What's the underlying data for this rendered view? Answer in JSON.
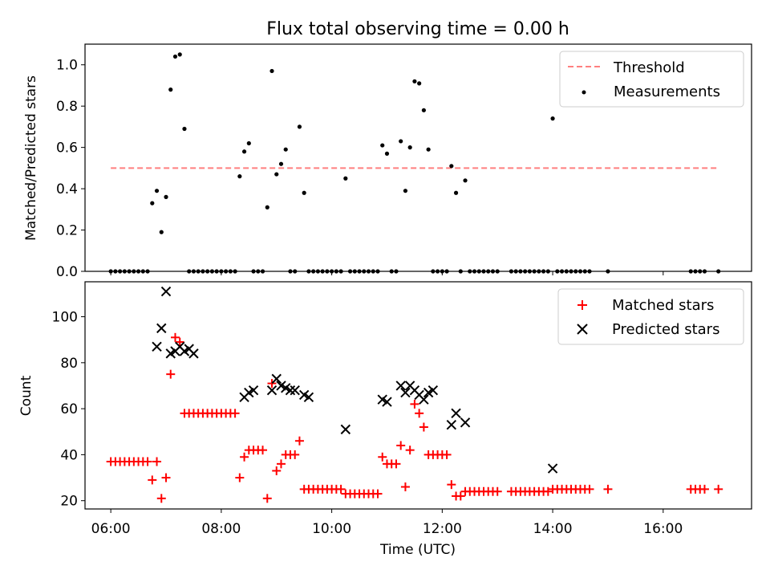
{
  "title": "Flux total observing time = 0.00 h",
  "colors": {
    "threshold": "#ff7f7f",
    "measurements": "#000000",
    "matched": "#ff0000",
    "predicted": "#000000"
  },
  "chart_data": [
    {
      "type": "scatter",
      "panel": "top",
      "title": "Flux total observing time = 0.00 h",
      "xlabel": "",
      "ylabel": "Matched/Predicted stars",
      "xlim": [
        "05:32",
        "17:36"
      ],
      "ylim": [
        0,
        1.1
      ],
      "yticks": [
        "0.0",
        "0.2",
        "0.4",
        "0.6",
        "0.8",
        "1.0"
      ],
      "legend": {
        "placement": "top-right",
        "entries": [
          "Threshold",
          "Measurements"
        ]
      },
      "threshold": {
        "name": "Threshold",
        "y": 0.5,
        "x": [
          "06:00",
          "17:00"
        ]
      },
      "series": [
        {
          "name": "Measurements",
          "x": [
            "06:00",
            "06:05",
            "06:10",
            "06:15",
            "06:20",
            "06:25",
            "06:30",
            "06:35",
            "06:40",
            "06:45",
            "06:50",
            "06:55",
            "07:00",
            "07:05",
            "07:10",
            "07:15",
            "07:20",
            "07:25",
            "07:30",
            "07:35",
            "07:40",
            "07:45",
            "07:50",
            "07:55",
            "08:00",
            "08:05",
            "08:10",
            "08:15",
            "08:20",
            "08:25",
            "08:30",
            "08:35",
            "08:40",
            "08:45",
            "08:50",
            "08:55",
            "09:00",
            "09:05",
            "09:10",
            "09:15",
            "09:20",
            "09:25",
            "09:30",
            "09:35",
            "09:40",
            "09:45",
            "09:50",
            "09:55",
            "10:00",
            "10:05",
            "10:10",
            "10:15",
            "10:20",
            "10:25",
            "10:30",
            "10:35",
            "10:40",
            "10:45",
            "10:50",
            "10:55",
            "11:00",
            "11:05",
            "11:10",
            "11:15",
            "11:20",
            "11:25",
            "11:30",
            "11:35",
            "11:40",
            "11:45",
            "11:50",
            "11:55",
            "12:00",
            "12:05",
            "12:10",
            "12:15",
            "12:20",
            "12:25",
            "12:30",
            "12:35",
            "12:40",
            "12:45",
            "12:50",
            "12:55",
            "13:00",
            "13:15",
            "13:20",
            "13:25",
            "13:30",
            "13:35",
            "13:40",
            "13:45",
            "13:50",
            "13:55",
            "14:00",
            "14:05",
            "14:10",
            "14:15",
            "14:20",
            "14:25",
            "14:30",
            "14:35",
            "14:40",
            "15:00",
            "16:30",
            "16:35",
            "16:40",
            "16:45",
            "17:00"
          ],
          "y": [
            0,
            0,
            0,
            0,
            0,
            0,
            0,
            0,
            0,
            0.33,
            0.39,
            0.19,
            0.36,
            0.88,
            1.04,
            1.05,
            0.69,
            0,
            0,
            0,
            0,
            0,
            0,
            0,
            0,
            0,
            0,
            0,
            0.46,
            0.58,
            0.62,
            0,
            0,
            0,
            0.31,
            0.97,
            0.47,
            0.52,
            0.59,
            0,
            0,
            0.7,
            0.38,
            0,
            0,
            0,
            0,
            0,
            0,
            0,
            0,
            0.45,
            0,
            0,
            0,
            0,
            0,
            0,
            0,
            0.61,
            0.57,
            0,
            0,
            0.63,
            0.39,
            0.6,
            0.92,
            0.91,
            0.78,
            0.59,
            0,
            0,
            0,
            0,
            0.51,
            0.38,
            0,
            0.44,
            0,
            0,
            0,
            0,
            0,
            0,
            0,
            0,
            0,
            0,
            0,
            0,
            0,
            0,
            0,
            0,
            0.74,
            0,
            0,
            0,
            0,
            0,
            0,
            0,
            0,
            0,
            0,
            0,
            0,
            0,
            0
          ]
        }
      ]
    },
    {
      "type": "scatter",
      "panel": "bottom",
      "title": "",
      "xlabel": "Time (UTC)",
      "ylabel": "Count",
      "xlim": [
        "05:32",
        "17:36"
      ],
      "ylim": [
        16.4,
        115.2
      ],
      "xticks": [
        "06:00",
        "08:00",
        "10:00",
        "12:00",
        "14:00",
        "16:00"
      ],
      "yticks": [
        "20",
        "40",
        "60",
        "80",
        "100"
      ],
      "legend": {
        "placement": "top-right",
        "entries": [
          "Matched stars",
          "Predicted stars"
        ]
      },
      "series": [
        {
          "name": "Matched stars",
          "marker": "plus",
          "x": [
            "06:00",
            "06:05",
            "06:10",
            "06:15",
            "06:20",
            "06:25",
            "06:30",
            "06:35",
            "06:40",
            "06:45",
            "06:50",
            "06:55",
            "07:00",
            "07:05",
            "07:10",
            "07:15",
            "07:20",
            "07:25",
            "07:30",
            "07:35",
            "07:40",
            "07:45",
            "07:50",
            "07:55",
            "08:00",
            "08:05",
            "08:10",
            "08:15",
            "08:20",
            "08:25",
            "08:30",
            "08:35",
            "08:40",
            "08:45",
            "08:50",
            "08:55",
            "09:00",
            "09:05",
            "09:10",
            "09:15",
            "09:20",
            "09:25",
            "09:30",
            "09:35",
            "09:40",
            "09:45",
            "09:50",
            "09:55",
            "10:00",
            "10:05",
            "10:10",
            "10:15",
            "10:20",
            "10:25",
            "10:30",
            "10:35",
            "10:40",
            "10:45",
            "10:50",
            "10:55",
            "11:00",
            "11:05",
            "11:10",
            "11:15",
            "11:20",
            "11:25",
            "11:30",
            "11:35",
            "11:40",
            "11:45",
            "11:50",
            "11:55",
            "12:00",
            "12:05",
            "12:10",
            "12:15",
            "12:20",
            "12:25",
            "12:30",
            "12:35",
            "12:40",
            "12:45",
            "12:50",
            "12:55",
            "13:00",
            "13:15",
            "13:20",
            "13:25",
            "13:30",
            "13:35",
            "13:40",
            "13:45",
            "13:50",
            "13:55",
            "14:00",
            "14:05",
            "14:10",
            "14:15",
            "14:20",
            "14:25",
            "14:30",
            "14:35",
            "14:40",
            "15:00",
            "16:30",
            "16:35",
            "16:40",
            "16:45",
            "17:00"
          ],
          "y": [
            37,
            37,
            37,
            37,
            37,
            37,
            37,
            37,
            37,
            29,
            37,
            21,
            30,
            75,
            91,
            89,
            58,
            58,
            58,
            58,
            58,
            58,
            58,
            58,
            58,
            58,
            58,
            58,
            30,
            39,
            42,
            42,
            42,
            42,
            21,
            71,
            33,
            36,
            40,
            40,
            40,
            46,
            25,
            25,
            25,
            25,
            25,
            25,
            25,
            25,
            25,
            23,
            23,
            23,
            23,
            23,
            23,
            23,
            23,
            39,
            36,
            36,
            36,
            44,
            26,
            42,
            62,
            58,
            52,
            40,
            40,
            40,
            40,
            40,
            27,
            22,
            22,
            24,
            24,
            24,
            24,
            24,
            24,
            24,
            24,
            24,
            24,
            24,
            24,
            24,
            24,
            24,
            24,
            24,
            25,
            25,
            25,
            25,
            25,
            25,
            25,
            25,
            25,
            25,
            25,
            25,
            25,
            25,
            25
          ]
        },
        {
          "name": "Predicted stars",
          "marker": "x",
          "x": [
            "06:50",
            "06:55",
            "07:00",
            "07:05",
            "07:10",
            "07:15",
            "07:20",
            "07:25",
            "07:30",
            "08:25",
            "08:30",
            "08:35",
            "08:55",
            "09:00",
            "09:05",
            "09:10",
            "09:15",
            "09:20",
            "09:30",
            "09:35",
            "10:15",
            "10:55",
            "11:00",
            "11:15",
            "11:20",
            "11:25",
            "11:30",
            "11:35",
            "11:40",
            "11:45",
            "11:50",
            "12:10",
            "12:15",
            "12:25",
            "14:00"
          ],
          "y": [
            87,
            95,
            111,
            84,
            85,
            87,
            85,
            86,
            84,
            65,
            67,
            68,
            68,
            73,
            70,
            69,
            68,
            68,
            66,
            65,
            51,
            64,
            63,
            70,
            67,
            70,
            68,
            66,
            64,
            67,
            68,
            53,
            58,
            54,
            34
          ]
        }
      ]
    }
  ]
}
